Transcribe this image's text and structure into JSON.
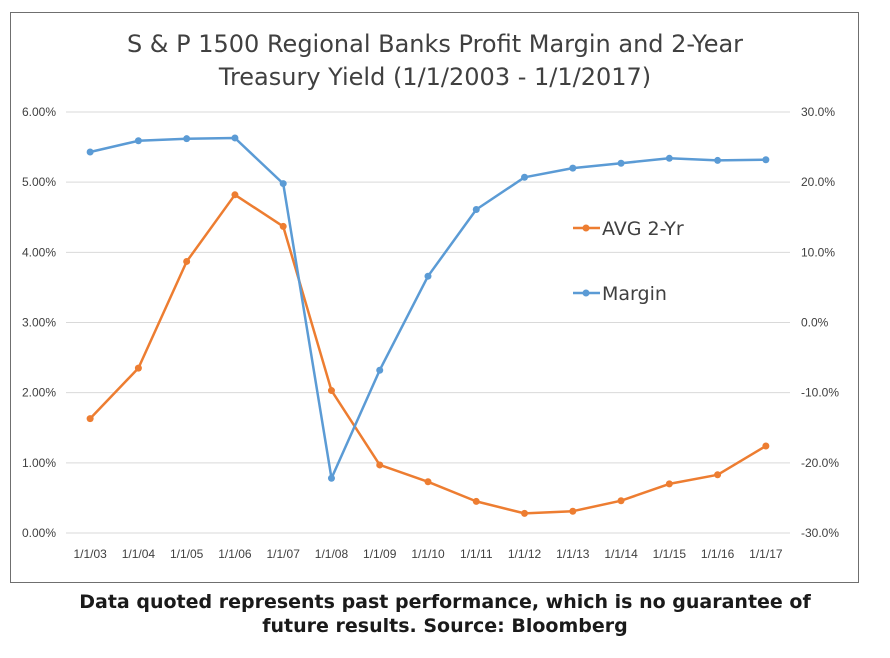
{
  "chart_data": {
    "type": "line",
    "title_lines": [
      "S & P 1500 Regional Banks Profit Margin and 2-Year",
      "Treasury Yield (1/1/2003 - 1/1/2017)"
    ],
    "categories": [
      "1/1/03",
      "1/1/04",
      "1/1/05",
      "1/1/06",
      "1/1/07",
      "1/1/08",
      "1/1/09",
      "1/1/10",
      "1/1/11",
      "1/1/12",
      "1/1/13",
      "1/1/14",
      "1/1/15",
      "1/1/16",
      "1/1/17"
    ],
    "left_axis": {
      "ylim": [
        0,
        6
      ],
      "ticks": [
        "0.00%",
        "1.00%",
        "2.00%",
        "3.00%",
        "4.00%",
        "5.00%",
        "6.00%"
      ]
    },
    "right_axis": {
      "ylim": [
        -30,
        30
      ],
      "ticks": [
        "-30.0%",
        "-20.0%",
        "-10.0%",
        "0.0%",
        "10.0%",
        "20.0%",
        "30.0%"
      ]
    },
    "grid": true,
    "legend_position": "center-right",
    "series": [
      {
        "name": "AVG 2-Yr",
        "axis": "left",
        "color": "#ed7d31",
        "values": [
          1.63,
          2.35,
          3.87,
          4.82,
          4.37,
          2.03,
          0.97,
          0.73,
          0.45,
          0.28,
          0.31,
          0.46,
          0.7,
          0.83,
          1.24
        ]
      },
      {
        "name": "Margin",
        "axis": "right",
        "color": "#5b9bd5",
        "values": [
          24.3,
          25.9,
          26.2,
          26.3,
          19.8,
          -22.2,
          -6.8,
          6.6,
          16.1,
          20.7,
          22.0,
          22.7,
          23.4,
          23.1,
          23.2
        ]
      }
    ]
  },
  "caption": {
    "line1": "Data quoted represents past performance, which is no guarantee of",
    "line2": "future results. Source: Bloomberg"
  }
}
